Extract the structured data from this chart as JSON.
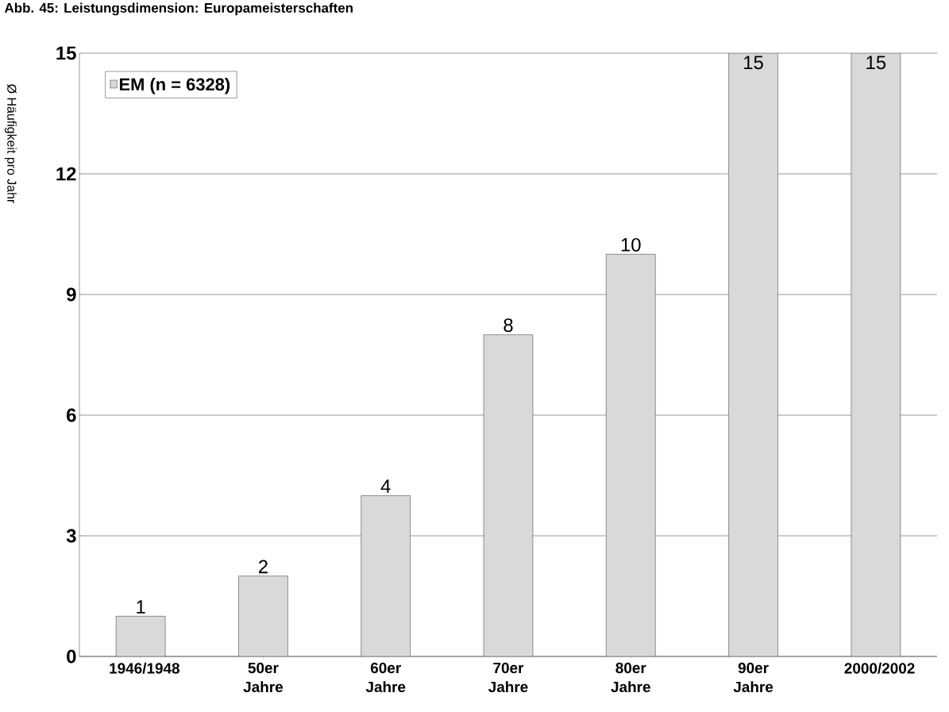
{
  "chart_data": {
    "type": "bar",
    "title": "Abb. 45: Leistungsdimension: Europameisterschaften",
    "ylabel": "Ø Häufigkeit pro Jahr",
    "categories": [
      "1946/1948",
      "50er Jahre",
      "60er Jahre",
      "70er Jahre",
      "80er Jahre",
      "90er Jahre",
      "2000/2002"
    ],
    "series": [
      {
        "name": "EM (n = 6328)",
        "color": "#d9d9d9",
        "values": [
          1,
          2,
          4,
          8,
          10,
          15,
          15
        ]
      }
    ],
    "ylim": [
      0,
      15
    ],
    "yticks": [
      0,
      3,
      6,
      9,
      12,
      15
    ],
    "grid": "y",
    "legend": "top left",
    "data_labels": true
  }
}
